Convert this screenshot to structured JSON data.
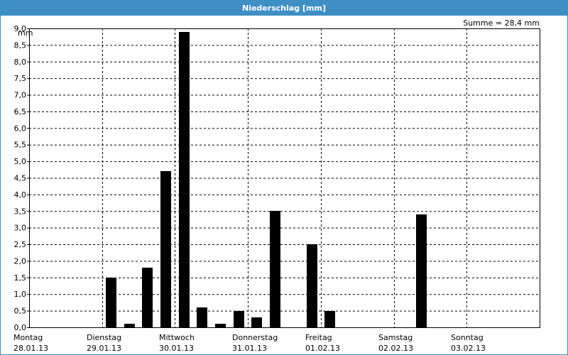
{
  "window": {
    "title": "Niederschlag [mm]"
  },
  "chart_data": {
    "type": "bar",
    "title": "Niederschlag [mm]",
    "ylabel": "mm",
    "summary": "Summe = 28,4 mm",
    "ylim": [
      0,
      9.0
    ],
    "yticks": [
      "0,0",
      "0,5",
      "1,0",
      "1,5",
      "2,0",
      "2,5",
      "3,0",
      "3,5",
      "4,0",
      "4,5",
      "5,0",
      "5,5",
      "6,0",
      "6,5",
      "7,0",
      "7,5",
      "8,0",
      "8,5",
      "9,0"
    ],
    "days": [
      {
        "name": "Montag",
        "date": "28.01.13"
      },
      {
        "name": "Dienstag",
        "date": "29.01.13"
      },
      {
        "name": "Mittwoch",
        "date": "30.01.13"
      },
      {
        "name": "Donnerstag",
        "date": "31.01.13"
      },
      {
        "name": "Freitag",
        "date": "01.02.13"
      },
      {
        "name": "Samstag",
        "date": "02.02.13"
      },
      {
        "name": "Sonntag",
        "date": "03.02.13"
      }
    ],
    "x": [
      "28.01.13 00-06",
      "28.01.13 06-12",
      "28.01.13 12-18",
      "28.01.13 18-24",
      "29.01.13 00-06",
      "29.01.13 06-12",
      "29.01.13 12-18",
      "29.01.13 18-24",
      "30.01.13 00-06",
      "30.01.13 06-12",
      "30.01.13 12-18",
      "30.01.13 18-24",
      "31.01.13 00-06",
      "31.01.13 06-12",
      "31.01.13 12-18",
      "31.01.13 18-24",
      "01.02.13 00-06",
      "01.02.13 06-12",
      "01.02.13 12-18",
      "01.02.13 18-24",
      "02.02.13 00-06",
      "02.02.13 06-12",
      "02.02.13 12-18",
      "02.02.13 18-24",
      "03.02.13 00-06",
      "03.02.13 06-12",
      "03.02.13 12-18",
      "03.02.13 18-24"
    ],
    "values": [
      0,
      0,
      0,
      0,
      1.5,
      0.1,
      1.8,
      4.7,
      8.9,
      0.6,
      0.1,
      0.5,
      0.3,
      3.5,
      0,
      2.5,
      0.5,
      0,
      0,
      0,
      0,
      3.4,
      0,
      0,
      0,
      0,
      0,
      0
    ],
    "grid": true,
    "bar_color": "#000000"
  }
}
